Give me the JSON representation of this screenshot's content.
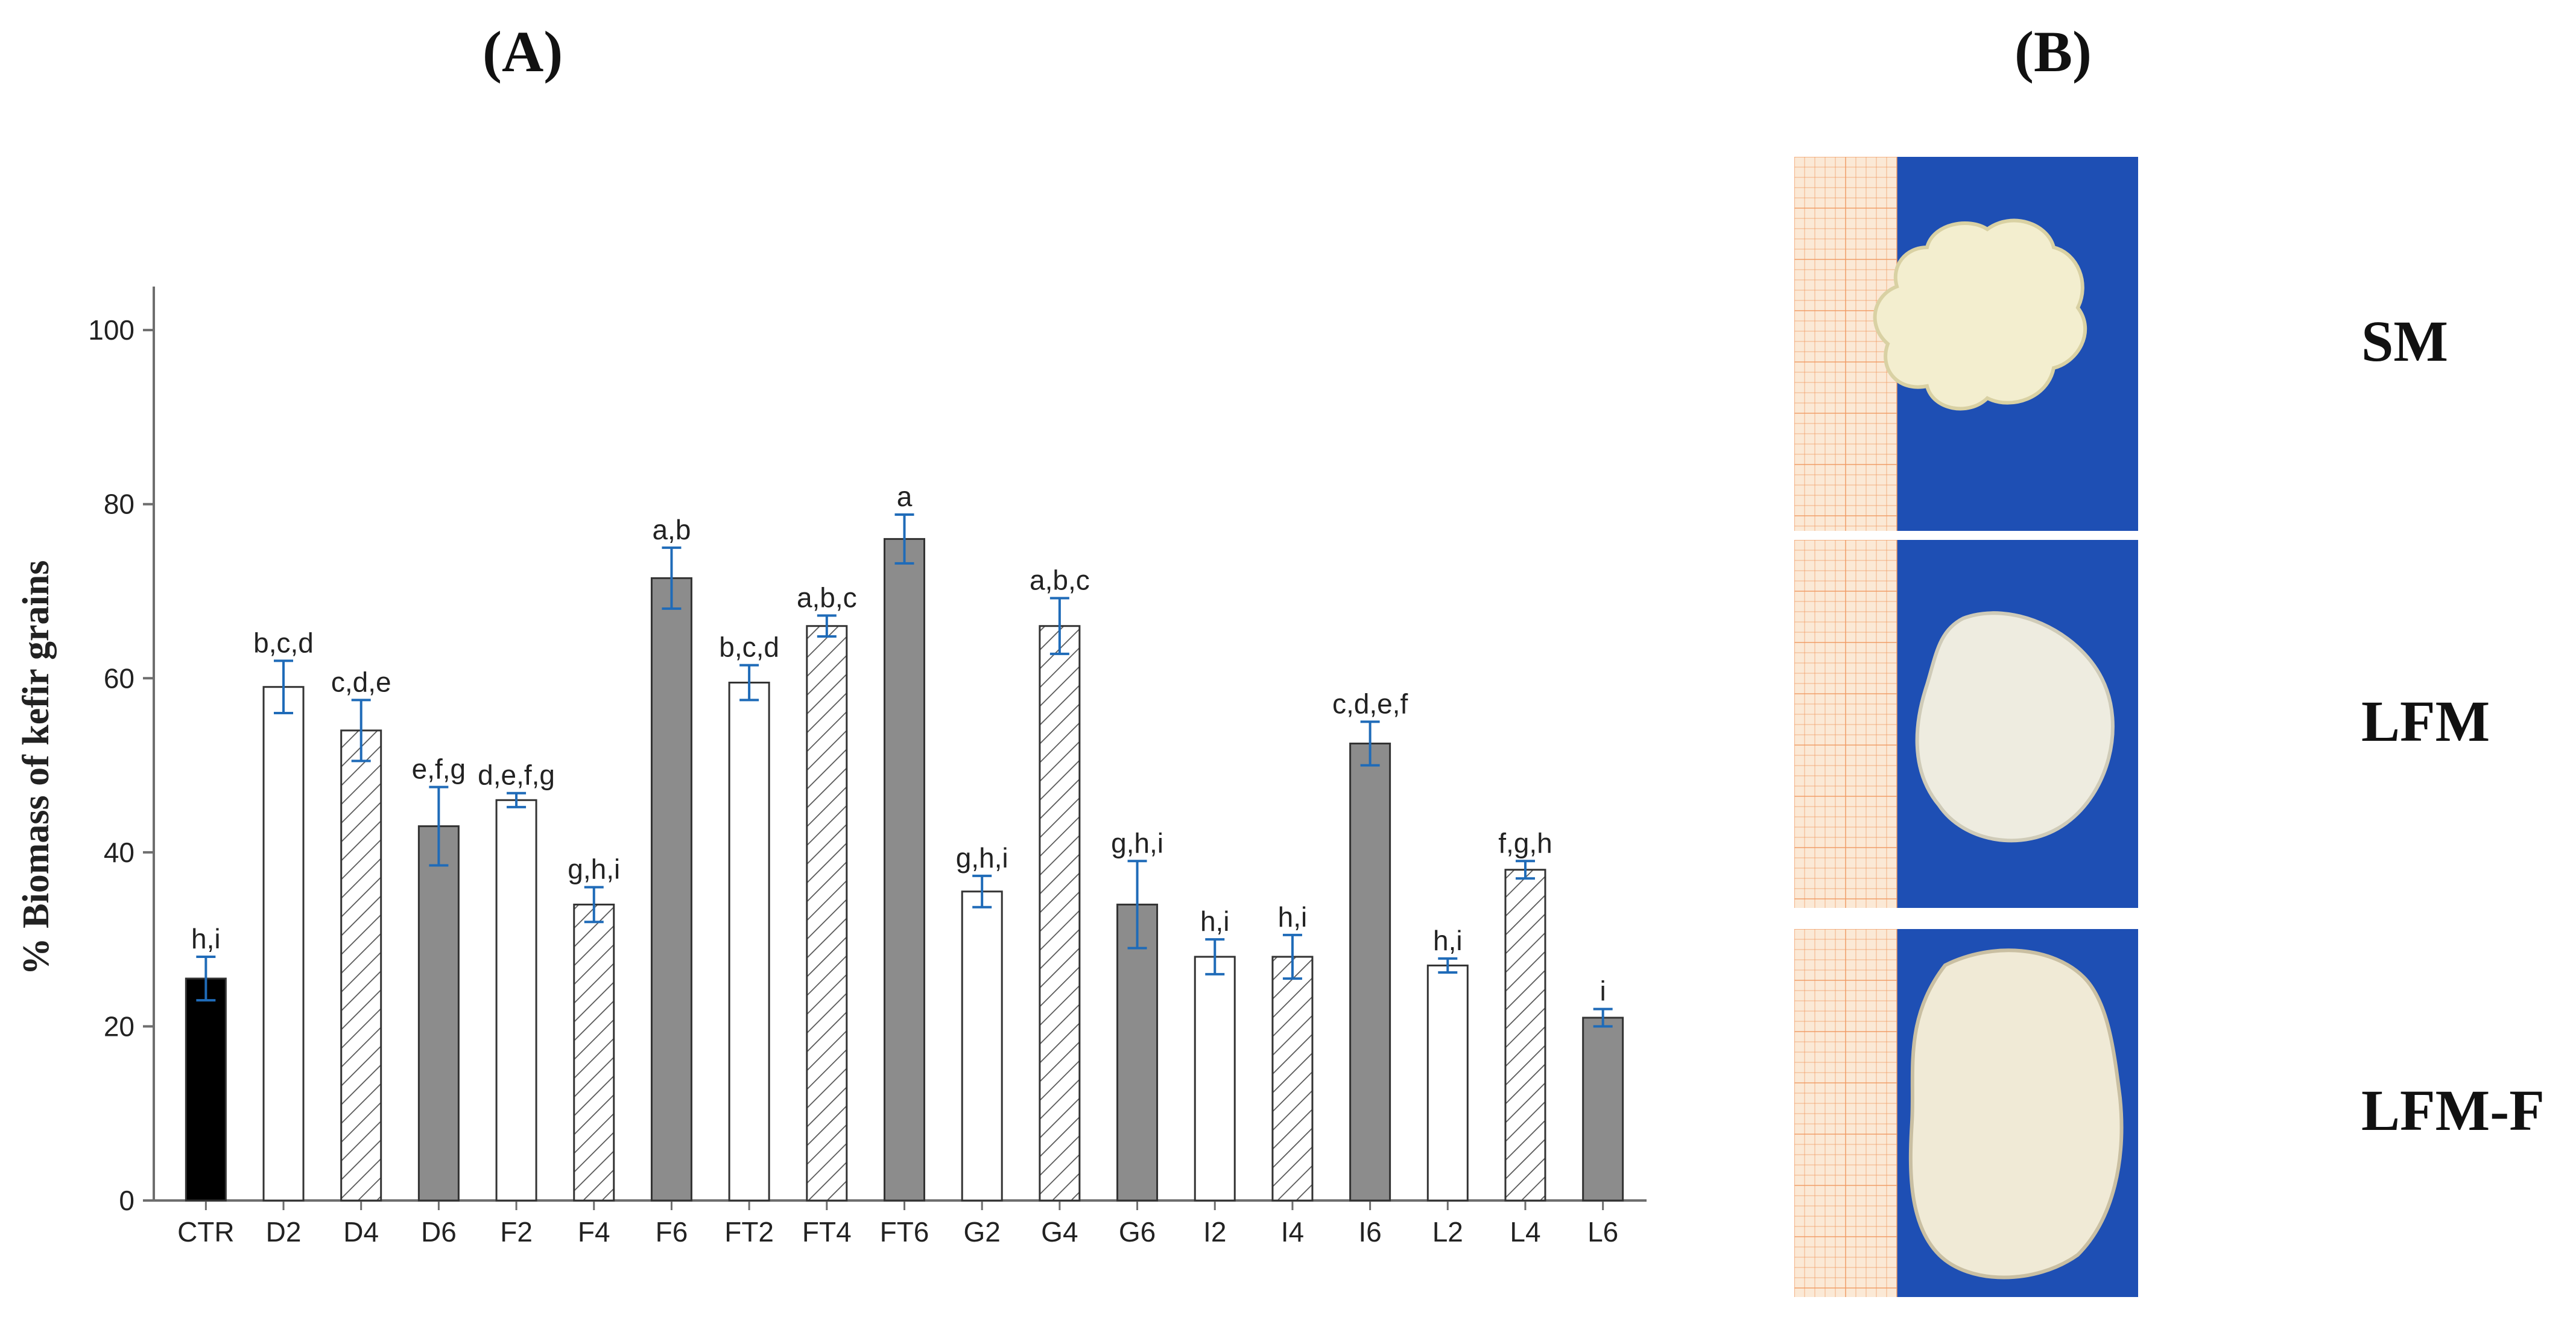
{
  "panel_a": {
    "title": "(A)"
  },
  "panel_b": {
    "title": "(B)",
    "photos": [
      {
        "label": "SM",
        "texture": "curd-cluster",
        "colors": {
          "curd": "#f3eecf",
          "shade": "#d9d1a3"
        }
      },
      {
        "label": "LFM",
        "texture": "smooth-mass",
        "colors": {
          "curd": "#eeece0",
          "shade": "#cfcbb8"
        }
      },
      {
        "label": "LFM-F",
        "texture": "ridged-mass",
        "colors": {
          "curd": "#f0ead6",
          "shade": "#c9bfa2"
        }
      }
    ],
    "colors": {
      "background": "#1e4fb4",
      "grid_paper": "#fbe9d6",
      "grid_lines": "#f19a62"
    }
  },
  "chart_data": {
    "type": "bar",
    "ylabel": "% Biomass of kefir grains",
    "xlabel": "",
    "ylim": [
      0,
      105
    ],
    "yticks": [
      0,
      20,
      40,
      60,
      80,
      100
    ],
    "grid": false,
    "categories": [
      "CTR",
      "D2",
      "D4",
      "D6",
      "F2",
      "F4",
      "F6",
      "FT2",
      "FT4",
      "FT6",
      "G2",
      "G4",
      "G6",
      "I2",
      "I4",
      "I6",
      "L2",
      "L4",
      "L6"
    ],
    "values": [
      25.5,
      59,
      54,
      43,
      46,
      34,
      71.5,
      59.5,
      66,
      76,
      35.5,
      66,
      34,
      28,
      28,
      52.5,
      27,
      38,
      21
    ],
    "errors": [
      2.5,
      3,
      3.5,
      4.5,
      0.8,
      2,
      3.5,
      2,
      1.2,
      2.8,
      1.8,
      3.2,
      5,
      2,
      2.5,
      2.5,
      0.8,
      1,
      1
    ],
    "significance_labels": [
      "h,i",
      "b,c,d",
      "c,d,e",
      "e,f,g",
      "d,e,f,g",
      "g,h,i",
      "a,b",
      "b,c,d",
      "a,b,c",
      "a",
      "g,h,i",
      "a,b,c",
      "g,h,i",
      "h,i",
      "h,i",
      "c,d,e,f",
      "h,i",
      "f,g,h",
      "i"
    ],
    "fills": [
      "solid-black",
      "white",
      "hatched",
      "solid-gray",
      "white",
      "hatched",
      "solid-gray",
      "white",
      "hatched",
      "solid-gray",
      "white",
      "hatched",
      "solid-gray",
      "white",
      "hatched",
      "solid-gray",
      "white",
      "hatched",
      "solid-gray"
    ],
    "colors": {
      "solid-black": "#000000",
      "solid-gray": "#8c8c8c",
      "white": "#ffffff",
      "hatch_line": "#555555",
      "bar_stroke": "#333333",
      "error_bar": "#1f6bb8",
      "axis": "#6e6e6e",
      "text": "#222222"
    }
  }
}
